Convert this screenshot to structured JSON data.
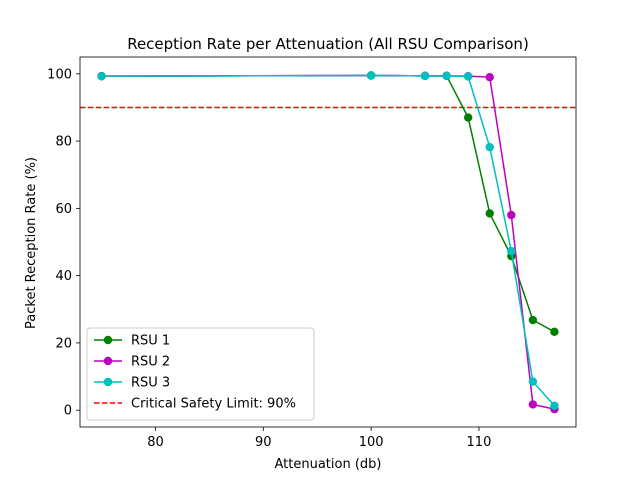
{
  "chart_data": {
    "type": "line",
    "title": "Reception Rate per Attenuation (All RSU Comparison)",
    "xlabel": "Attenuation (db)",
    "ylabel": "Packet Reception Rate (%)",
    "xlim": [
      73,
      119
    ],
    "ylim": [
      -5,
      105
    ],
    "xticks": [
      80,
      90,
      100,
      110
    ],
    "yticks": [
      0,
      20,
      40,
      60,
      80,
      100
    ],
    "grid": false,
    "legend_position": "lower-left",
    "series": [
      {
        "name": "RSU 1",
        "color": "#008000",
        "marker": "circle",
        "x": [
          75,
          100,
          105,
          107,
          109,
          111,
          113,
          115,
          117
        ],
        "y": [
          99.3,
          99.5,
          99.4,
          99.4,
          87,
          58.5,
          45.8,
          26.8,
          23.3
        ]
      },
      {
        "name": "RSU 2",
        "color": "#bf00bf",
        "marker": "circle",
        "x": [
          75,
          100,
          105,
          107,
          109,
          111,
          113,
          115,
          117
        ],
        "y": [
          99.3,
          99.5,
          99.4,
          99.4,
          99.3,
          99,
          58,
          1.7,
          0.3
        ]
      },
      {
        "name": "RSU 3",
        "color": "#00bfbf",
        "marker": "circle",
        "x": [
          75,
          100,
          105,
          107,
          109,
          111,
          113,
          115,
          117
        ],
        "y": [
          99.3,
          99.5,
          99.4,
          99.4,
          99.2,
          78.2,
          47.3,
          8.5,
          1.3
        ]
      }
    ],
    "reference_lines": [
      {
        "name": "Critical Safety Limit: 90%",
        "orientation": "horizontal",
        "value": 90,
        "color": "#ff0000",
        "style": "dashed"
      }
    ]
  }
}
